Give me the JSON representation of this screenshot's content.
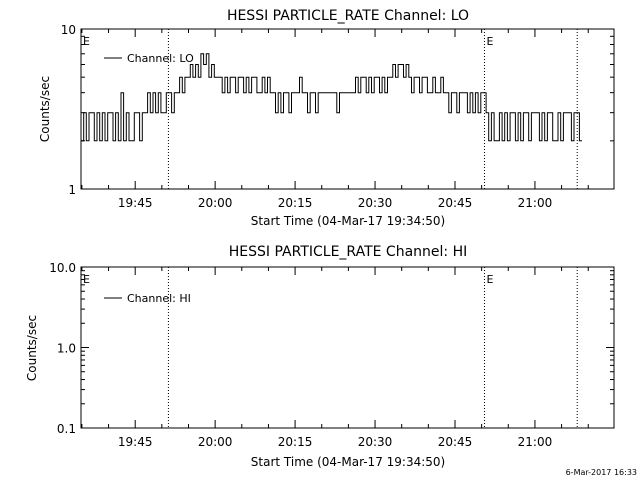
{
  "chart_data": [
    {
      "type": "line",
      "title": "HESSI PARTICLE_RATE Channel: LO",
      "ylabel": "Counts/sec",
      "xlabel": "Start Time (04-Mar-17 19:34:50)",
      "yscale": "log",
      "ylim": [
        1,
        10
      ],
      "ytick_labels": [
        "1",
        "10"
      ],
      "xlim_minutes_since_start": [
        0,
        100
      ],
      "xtick_labels": [
        "19:45",
        "20:00",
        "20:15",
        "20:30",
        "20:45",
        "21:00"
      ],
      "xtick_minutes": [
        10.167,
        25.167,
        40.167,
        55.167,
        70.167,
        85.167
      ],
      "eclipse_lines_minutes": [
        16.4,
        75.7,
        93.1
      ],
      "eclipse_marker_label": "E",
      "eclipse_markers_at": [
        0,
        75.7
      ],
      "legend": {
        "placement": "top-left",
        "entries": [
          "Channel: LO"
        ]
      },
      "series": [
        {
          "name": "Channel: LO",
          "line_style": "solid",
          "x": [
            0.0,
            0.5,
            1.0,
            1.5,
            2.0,
            2.5,
            3.0,
            3.5,
            4.0,
            4.5,
            5.0,
            5.5,
            6.0,
            6.5,
            7.0,
            7.5,
            8.0,
            8.5,
            9.0,
            9.5,
            10.0,
            10.5,
            11.0,
            11.5,
            12.0,
            12.5,
            13.0,
            13.5,
            14.0,
            14.5,
            15.0,
            15.5,
            16.0,
            16.5,
            17.0,
            17.5,
            18.0,
            18.5,
            19.0,
            19.5,
            20.0,
            20.5,
            21.0,
            21.5,
            22.0,
            22.5,
            23.0,
            23.5,
            24.0,
            24.5,
            25.0,
            25.5,
            26.0,
            26.5,
            27.0,
            27.5,
            28.0,
            28.5,
            29.0,
            29.5,
            30.0,
            30.5,
            31.0,
            31.5,
            32.0,
            32.5,
            33.0,
            33.5,
            34.0,
            34.5,
            35.0,
            35.5,
            36.0,
            36.5,
            37.0,
            37.5,
            38.0,
            38.5,
            39.0,
            39.5,
            40.0,
            40.5,
            41.0,
            41.5,
            42.0,
            42.5,
            43.0,
            43.5,
            44.0,
            44.5,
            45.0,
            45.5,
            46.0,
            46.5,
            47.0,
            47.5,
            48.0,
            48.5,
            49.0,
            49.5,
            50.0,
            50.5,
            51.0,
            51.5,
            52.0,
            52.5,
            53.0,
            53.5,
            54.0,
            54.5,
            55.0,
            55.5,
            56.0,
            56.5,
            57.0,
            57.5,
            58.0,
            58.5,
            59.0,
            59.5,
            60.0,
            60.5,
            61.0,
            61.5,
            62.0,
            62.5,
            63.0,
            63.5,
            64.0,
            64.5,
            65.0,
            65.5,
            66.0,
            66.5,
            67.0,
            67.5,
            68.0,
            68.5,
            69.0,
            69.5,
            70.0,
            70.5,
            71.0,
            71.5,
            72.0,
            72.5,
            73.0,
            73.5,
            74.0,
            74.5,
            75.0,
            75.5,
            76.0,
            76.5,
            77.0,
            77.5,
            78.0,
            78.5,
            79.0,
            79.5,
            80.0,
            80.5,
            81.0,
            81.5,
            82.0,
            82.5,
            83.0,
            83.5,
            84.0,
            84.5,
            85.0,
            85.5,
            86.0,
            86.5,
            87.0,
            87.5,
            88.0,
            88.5,
            89.0,
            89.5,
            90.0,
            90.5,
            91.0,
            91.5,
            92.0,
            92.5,
            93.0,
            93.5
          ],
          "y": [
            2,
            3,
            2,
            3,
            3,
            2,
            3,
            2,
            3,
            2,
            3,
            3,
            2,
            3,
            2,
            4,
            2,
            3,
            2,
            2,
            3,
            3,
            2,
            3,
            3,
            4,
            3,
            4,
            3,
            4,
            3,
            3,
            4,
            4,
            3,
            4,
            4,
            5,
            4,
            5,
            5,
            6,
            5,
            6,
            5,
            7,
            6,
            7,
            5,
            6,
            5,
            5,
            5,
            4,
            5,
            4,
            5,
            5,
            4,
            5,
            5,
            4,
            5,
            4,
            5,
            5,
            4,
            4,
            5,
            4,
            5,
            4,
            4,
            3,
            4,
            3,
            4,
            4,
            3,
            4,
            4,
            4,
            5,
            4,
            4,
            3,
            4,
            4,
            3,
            4,
            4,
            4,
            4,
            4,
            4,
            4,
            3,
            4,
            4,
            4,
            4,
            4,
            4,
            5,
            4,
            5,
            5,
            4,
            5,
            4,
            5,
            5,
            4,
            5,
            4,
            5,
            5,
            6,
            5,
            6,
            6,
            5,
            6,
            5,
            4,
            5,
            5,
            4,
            5,
            5,
            4,
            4,
            5,
            4,
            4,
            5,
            4,
            4,
            3,
            4,
            4,
            3,
            4,
            4,
            4,
            3,
            4,
            3,
            4,
            3,
            4,
            4,
            3,
            2,
            3,
            2,
            2,
            3,
            2,
            3,
            2,
            3,
            3,
            2,
            3,
            2,
            3,
            3,
            2,
            3,
            3,
            3,
            2,
            3,
            2,
            3,
            3,
            2,
            2,
            3,
            2,
            3,
            3,
            3,
            2,
            3,
            3,
            2
          ]
        }
      ]
    },
    {
      "type": "line",
      "title": "HESSI PARTICLE_RATE Channel: HI",
      "ylabel": "Counts/sec",
      "xlabel": "Start Time (04-Mar-17 19:34:50)",
      "yscale": "log",
      "ylim": [
        0.1,
        10
      ],
      "ytick_labels": [
        "0.1",
        "1.0",
        "10.0"
      ],
      "xlim_minutes_since_start": [
        0,
        100
      ],
      "xtick_labels": [
        "19:45",
        "20:00",
        "20:15",
        "20:30",
        "20:45",
        "21:00"
      ],
      "xtick_minutes": [
        10.167,
        25.167,
        40.167,
        55.167,
        70.167,
        85.167
      ],
      "eclipse_lines_minutes": [
        16.4,
        75.7,
        93.1
      ],
      "eclipse_marker_label": "E",
      "eclipse_markers_at": [
        0,
        75.7
      ],
      "legend": {
        "placement": "top-left",
        "entries": [
          "Channel: HI"
        ]
      },
      "series": [
        {
          "name": "Channel: HI",
          "line_style": "solid",
          "x": [],
          "y": []
        }
      ]
    }
  ],
  "footer": {
    "timestamp": "6-Mar-2017 16:33"
  }
}
